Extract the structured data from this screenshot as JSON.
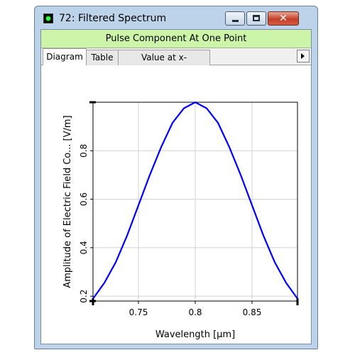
{
  "window": {
    "title": "72: Filtered Spectrum",
    "icon": "green-led-icon",
    "close_glyph": "✕"
  },
  "header": {
    "caption": "Pulse Component At One Point",
    "color": "#ccf5a9"
  },
  "tabs": [
    {
      "label": "Diagram",
      "active": true
    },
    {
      "label": "Table",
      "active": false
    },
    {
      "label": "Value at x-Coordinate",
      "active": false
    }
  ],
  "chart_data": {
    "type": "line",
    "xlabel": "Wavelength [µm]",
    "ylabel": "Amplitude of Electric Field Co... [V/m]",
    "xlim": [
      0.71,
      0.89
    ],
    "ylim": [
      0.18,
      1.0
    ],
    "x_ticks": [
      0.75,
      0.8,
      0.85
    ],
    "x_tick_labels": [
      "0.75",
      "0.8",
      "0.85"
    ],
    "y_ticks": [
      0.2,
      0.4,
      0.6,
      0.8
    ],
    "y_tick_labels": [
      "0.2",
      "0.4",
      "0.6",
      "0.8"
    ],
    "grid": true,
    "line_color": "#0000ff",
    "series": [
      {
        "x": [
          0.71,
          0.72,
          0.73,
          0.74,
          0.75,
          0.76,
          0.77,
          0.78,
          0.79,
          0.8,
          0.81,
          0.82,
          0.83,
          0.84,
          0.85,
          0.86,
          0.87,
          0.88,
          0.89
        ],
        "values": [
          0.19,
          0.255,
          0.34,
          0.45,
          0.575,
          0.7,
          0.815,
          0.915,
          0.975,
          1.0,
          0.975,
          0.915,
          0.815,
          0.7,
          0.575,
          0.45,
          0.34,
          0.255,
          0.19
        ]
      }
    ]
  }
}
